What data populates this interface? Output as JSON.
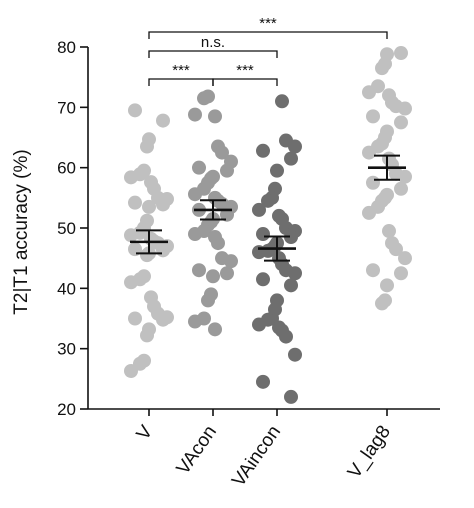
{
  "chart_data": {
    "type": "scatter",
    "title": "",
    "xlabel": "",
    "ylabel": "T2|T1 accuracy (%)",
    "ylim": [
      20,
      80
    ],
    "yticks": [
      20,
      30,
      40,
      50,
      60,
      70,
      80
    ],
    "grid": false,
    "legend": "none",
    "categories": [
      "V",
      "VAcon",
      "VAincon",
      "V_lag8"
    ],
    "series": [
      {
        "category": "V",
        "color": "#c0c0c0",
        "mean": 47.7,
        "sem": 1.9,
        "values": [
          69.5,
          67.8,
          64.7,
          63.5,
          59.5,
          58.9,
          58.4,
          57.6,
          56.5,
          55.0,
          54.8,
          54.2,
          53.9,
          53.5,
          51.2,
          50.0,
          49.2,
          48.8,
          48.2,
          47.8,
          47.5,
          47.0,
          46.5,
          46.3,
          45.8,
          45.5,
          42.0,
          41.5,
          41.0,
          38.5,
          37.0,
          35.8,
          35.2,
          35.0,
          34.8,
          33.2,
          32.2,
          28.0,
          27.5,
          26.3
        ]
      },
      {
        "category": "VAcon",
        "color": "#9a9a9a",
        "mean": 53.0,
        "sem": 1.6,
        "values": [
          71.8,
          71.5,
          68.8,
          68.5,
          63.5,
          62.5,
          61.0,
          60.0,
          59.5,
          58.5,
          58.2,
          57.5,
          56.5,
          55.6,
          55.0,
          54.5,
          54.0,
          53.5,
          53.0,
          52.2,
          51.5,
          51.0,
          50.5,
          49.5,
          49.0,
          48.5,
          47.5,
          45.0,
          44.5,
          43.0,
          42.5,
          42.0,
          39.0,
          38.0,
          35.0,
          34.5,
          33.2
        ]
      },
      {
        "category": "VAincon",
        "color": "#6e6e6e",
        "mean": 46.6,
        "sem": 2.0,
        "values": [
          71.0,
          64.5,
          63.5,
          62.8,
          61.5,
          59.5,
          56.5,
          55.0,
          54.5,
          53.0,
          52.0,
          51.5,
          50.0,
          49.5,
          49.0,
          48.5,
          47.5,
          47.0,
          46.5,
          46.2,
          46.0,
          45.0,
          44.0,
          43.0,
          42.5,
          41.5,
          40.5,
          38.0,
          36.5,
          35.0,
          34.8,
          34.0,
          33.5,
          33.0,
          32.0,
          29.0,
          24.5,
          22.0
        ]
      },
      {
        "category": "V_lag8",
        "color": "#c0c0c0",
        "mean": 60.0,
        "sem": 2.0,
        "values": [
          79.0,
          78.8,
          77.2,
          76.5,
          73.5,
          72.5,
          72.0,
          70.8,
          70.2,
          69.8,
          68.5,
          67.5,
          66.0,
          65.0,
          64.0,
          63.5,
          62.5,
          61.5,
          60.5,
          59.0,
          58.5,
          57.5,
          56.5,
          55.5,
          55.0,
          54.5,
          53.5,
          52.5,
          49.5,
          47.5,
          46.5,
          45.0,
          43.0,
          42.5,
          40.5,
          38.0,
          37.5
        ]
      }
    ],
    "annotations": [
      {
        "from": "V",
        "to": "VAcon",
        "level": 1,
        "text": "***"
      },
      {
        "from": "VAcon",
        "to": "VAincon",
        "level": 1,
        "text": "***"
      },
      {
        "from": "V",
        "to": "VAincon",
        "level": 2,
        "text": "n.s."
      },
      {
        "from": "V",
        "to": "V_lag8",
        "level": 3,
        "text": "***"
      }
    ]
  }
}
